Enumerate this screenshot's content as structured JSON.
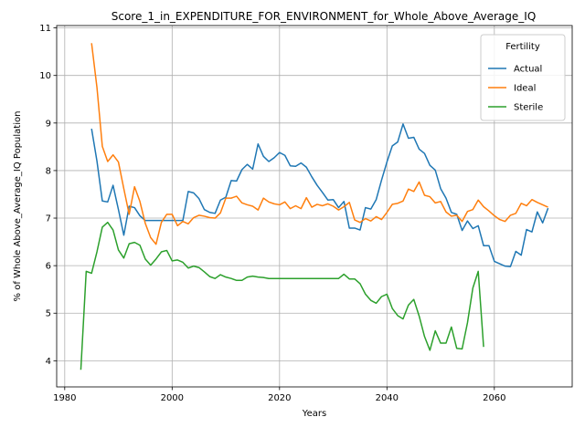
{
  "chart_data": {
    "type": "line",
    "title": "Score_1_in_EXPENDITURE_FOR_ENVIRONMENT_for_Whole_Above_Average_IQ",
    "xlabel": "Years",
    "ylabel": "% of Whole Above_Average_IQ Population",
    "xlim": [
      1978.5,
      2074.5
    ],
    "ylim": [
      3.45,
      11.05
    ],
    "xticks": [
      1980,
      2000,
      2020,
      2040,
      2060
    ],
    "yticks": [
      4,
      5,
      6,
      7,
      8,
      9,
      10,
      11
    ],
    "grid": true,
    "legend": {
      "title": "Fertility",
      "position": "top-right"
    },
    "series": [
      {
        "name": "Actual",
        "color": "#1f77b4",
        "x": [
          1985,
          1986,
          1987,
          1988,
          1989,
          1990,
          1991,
          1992,
          1993,
          1994,
          1995,
          1996,
          1997,
          1998,
          1999,
          2000,
          2001,
          2002,
          2003,
          2004,
          2005,
          2006,
          2007,
          2008,
          2009,
          2010,
          2011,
          2012,
          2013,
          2014,
          2015,
          2016,
          2017,
          2018,
          2019,
          2020,
          2021,
          2022,
          2023,
          2024,
          2025,
          2026,
          2027,
          2028,
          2029,
          2030,
          2031,
          2032,
          2033,
          2034,
          2035,
          2036,
          2037,
          2038,
          2039,
          2040,
          2041,
          2042,
          2043,
          2044,
          2045,
          2046,
          2047,
          2048,
          2049,
          2050,
          2051,
          2052,
          2053,
          2054,
          2055,
          2056,
          2057,
          2058,
          2059,
          2060,
          2061,
          2062,
          2063,
          2064,
          2065,
          2066,
          2067,
          2068,
          2069,
          2070
        ],
        "y": [
          8.88,
          8.2,
          7.36,
          7.34,
          7.69,
          7.18,
          6.64,
          7.25,
          7.22,
          7.05,
          6.95,
          6.95,
          6.95,
          6.95,
          6.95,
          6.95,
          6.95,
          6.95,
          7.56,
          7.53,
          7.41,
          7.18,
          7.12,
          7.1,
          7.38,
          7.44,
          7.79,
          7.78,
          8.02,
          8.13,
          8.03,
          8.56,
          8.3,
          8.19,
          8.27,
          8.38,
          8.32,
          8.1,
          8.09,
          8.16,
          8.07,
          7.87,
          7.69,
          7.54,
          7.38,
          7.39,
          7.22,
          7.35,
          6.79,
          6.79,
          6.75,
          7.22,
          7.19,
          7.39,
          7.8,
          8.18,
          8.52,
          8.6,
          8.98,
          8.68,
          8.7,
          8.45,
          8.36,
          8.11,
          8.01,
          7.62,
          7.42,
          7.12,
          7.08,
          6.74,
          6.94,
          6.78,
          6.84,
          6.42,
          6.42,
          6.09,
          6.04,
          5.99,
          5.98,
          6.3,
          6.22,
          6.76,
          6.71,
          7.13,
          6.9,
          7.21
        ]
      },
      {
        "name": "Ideal",
        "color": "#ff7f0e",
        "x": [
          1985,
          1986,
          1987,
          1988,
          1989,
          1990,
          1991,
          1992,
          1993,
          1994,
          1995,
          1996,
          1997,
          1998,
          1999,
          2000,
          2001,
          2002,
          2003,
          2004,
          2005,
          2006,
          2007,
          2008,
          2009,
          2010,
          2011,
          2012,
          2013,
          2014,
          2015,
          2016,
          2017,
          2018,
          2019,
          2020,
          2021,
          2022,
          2023,
          2024,
          2025,
          2026,
          2027,
          2028,
          2029,
          2030,
          2031,
          2032,
          2033,
          2034,
          2035,
          2036,
          2037,
          2038,
          2039,
          2040,
          2041,
          2042,
          2043,
          2044,
          2045,
          2046,
          2047,
          2048,
          2049,
          2050,
          2051,
          2052,
          2053,
          2054,
          2055,
          2056,
          2057,
          2058,
          2059,
          2060,
          2061,
          2062,
          2063,
          2064,
          2065,
          2066,
          2067,
          2068,
          2069,
          2070
        ],
        "y": [
          10.68,
          9.75,
          8.51,
          8.19,
          8.33,
          8.18,
          7.62,
          7.08,
          7.66,
          7.35,
          6.89,
          6.59,
          6.45,
          6.91,
          7.08,
          7.08,
          6.84,
          6.93,
          6.88,
          7.01,
          7.06,
          7.04,
          7.01,
          7.0,
          7.11,
          7.42,
          7.42,
          7.46,
          7.32,
          7.28,
          7.25,
          7.17,
          7.42,
          7.34,
          7.3,
          7.28,
          7.34,
          7.2,
          7.26,
          7.2,
          7.43,
          7.23,
          7.29,
          7.26,
          7.3,
          7.25,
          7.17,
          7.24,
          7.33,
          6.96,
          6.91,
          6.99,
          6.94,
          7.03,
          6.97,
          7.12,
          7.29,
          7.31,
          7.36,
          7.61,
          7.56,
          7.76,
          7.48,
          7.45,
          7.32,
          7.35,
          7.13,
          7.04,
          7.06,
          6.93,
          7.14,
          7.18,
          7.38,
          7.24,
          7.15,
          7.05,
          6.97,
          6.93,
          7.06,
          7.1,
          7.31,
          7.26,
          7.39,
          7.33,
          7.28,
          7.23
        ]
      },
      {
        "name": "Sterile",
        "color": "#2ca02c",
        "x": [
          1983,
          1984,
          1985,
          1986,
          1987,
          1988,
          1989,
          1990,
          1991,
          1992,
          1993,
          1994,
          1995,
          1996,
          1997,
          1998,
          1999,
          2000,
          2001,
          2002,
          2003,
          2004,
          2005,
          2006,
          2007,
          2008,
          2009,
          2010,
          2011,
          2012,
          2013,
          2014,
          2015,
          2016,
          2017,
          2018,
          2019,
          2020,
          2021,
          2022,
          2023,
          2024,
          2025,
          2026,
          2027,
          2028,
          2029,
          2030,
          2031,
          2032,
          2033,
          2034,
          2035,
          2036,
          2037,
          2038,
          2039,
          2040,
          2041,
          2042,
          2043,
          2044,
          2045,
          2046,
          2047,
          2048,
          2049,
          2050,
          2051,
          2052,
          2053,
          2054,
          2055,
          2056,
          2057,
          2058
        ],
        "y": [
          3.81,
          5.88,
          5.84,
          6.29,
          6.81,
          6.91,
          6.75,
          6.33,
          6.16,
          6.46,
          6.49,
          6.43,
          6.14,
          6.01,
          6.14,
          6.29,
          6.32,
          6.1,
          6.12,
          6.07,
          5.95,
          5.99,
          5.96,
          5.87,
          5.77,
          5.73,
          5.81,
          5.76,
          5.73,
          5.69,
          5.69,
          5.76,
          5.78,
          5.76,
          5.75,
          5.73,
          5.73,
          5.73,
          5.73,
          5.73,
          5.73,
          5.73,
          5.73,
          5.73,
          5.73,
          5.73,
          5.73,
          5.73,
          5.73,
          5.82,
          5.72,
          5.72,
          5.62,
          5.4,
          5.27,
          5.21,
          5.35,
          5.4,
          5.1,
          4.95,
          4.88,
          5.17,
          5.29,
          4.94,
          4.51,
          4.22,
          4.63,
          4.37,
          4.37,
          4.71,
          4.26,
          4.25,
          4.8,
          5.53,
          5.88,
          4.29
        ]
      }
    ]
  }
}
